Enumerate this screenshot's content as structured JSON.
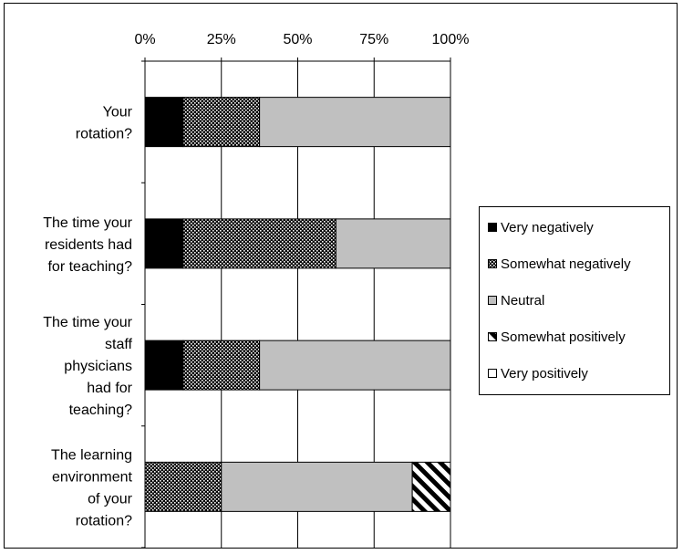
{
  "chart_data": {
    "type": "bar",
    "orientation": "horizontal",
    "stacked": true,
    "categories": [
      "Your rotation?",
      "The time your residents had for teaching?",
      "The time your staff physicians had for teaching?",
      "The learning environment of your rotation?"
    ],
    "category_lines": [
      [
        "Your",
        "rotation?"
      ],
      [
        "The time your",
        "residents had",
        "for teaching?"
      ],
      [
        "The time your",
        "staff",
        "physicians",
        "had for",
        "teaching?"
      ],
      [
        "The learning",
        "environment",
        "of your",
        "rotation?"
      ]
    ],
    "series": [
      {
        "name": "Very negatively",
        "values": [
          12.5,
          12.5,
          12.5,
          0
        ],
        "color": "#000000",
        "pattern": "solid"
      },
      {
        "name": "Somewhat negatively",
        "values": [
          25,
          50,
          25,
          25
        ],
        "color": "#000000",
        "pattern": "dots"
      },
      {
        "name": "Neutral",
        "values": [
          62.5,
          37.5,
          62.5,
          62.5
        ],
        "color": "#c0c0c0",
        "pattern": "solid"
      },
      {
        "name": "Somewhat positively",
        "values": [
          0,
          0,
          0,
          12.5
        ],
        "color": "#000000",
        "pattern": "diagonal"
      },
      {
        "name": "Very positively",
        "values": [
          0,
          0,
          0,
          0
        ],
        "color": "#ffffff",
        "pattern": "solid"
      }
    ],
    "x_ticks": [
      "0%",
      "25%",
      "50%",
      "75%",
      "100%"
    ],
    "xlim": [
      0,
      100
    ],
    "x_axis_position": "top",
    "grid": true,
    "legend_position": "right"
  }
}
